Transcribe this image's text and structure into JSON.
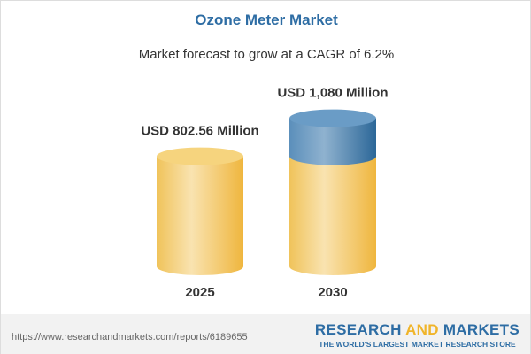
{
  "title": "Ozone Meter Market",
  "subtitle": "Market forecast to grow at a CAGR of 6.2%",
  "chart_data": {
    "type": "bar",
    "style": "3d-cylinder",
    "categories": [
      "2025",
      "2030"
    ],
    "values": [
      802.56,
      1080
    ],
    "data_labels": [
      "USD 802.56 Million",
      "USD 1,080 Million"
    ],
    "unit": "USD Million",
    "colors": {
      "base": "#f2c45a",
      "growth": "#3d78a8"
    }
  },
  "footer": {
    "url": "https://www.researchandmarkets.com/reports/6189655",
    "logo_part1": "RESEARCH ",
    "logo_part2": "AND",
    "logo_part3": " MARKETS",
    "tagline": "THE WORLD'S LARGEST MARKET RESEARCH STORE"
  }
}
